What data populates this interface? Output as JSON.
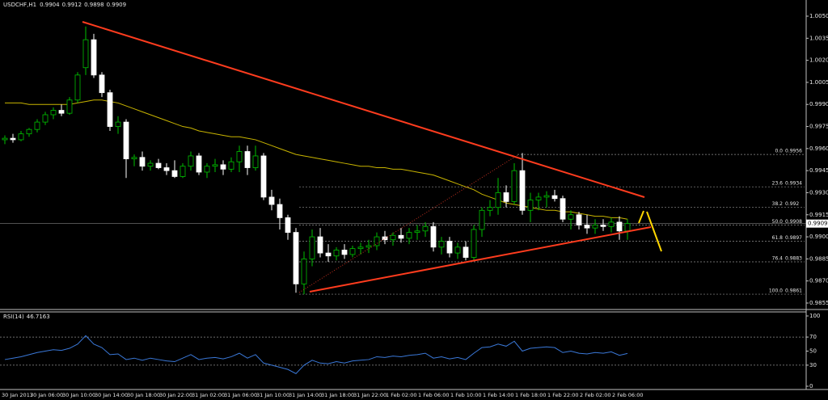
{
  "chart_data": [
    {
      "type": "candlestick",
      "title": "USDCHF,H1",
      "categories": [
        "30 Jan 2017",
        null,
        null,
        "30 Jan 06:00",
        null,
        null,
        null,
        "30 Jan 10:00",
        null,
        null,
        null,
        "30 Jan 14:00",
        null,
        null,
        null,
        "30 Jan 18:00",
        null,
        null,
        null,
        "30 Jan 22:00",
        null,
        null,
        null,
        "31 Jan 02:00",
        null,
        null,
        null,
        "31 Jan 06:00",
        null,
        null,
        null,
        "31 Jan 10:00",
        null,
        null,
        null,
        "31 Jan 14:00",
        null,
        null,
        null,
        "31 Jan 18:00",
        null,
        null,
        null,
        "31 Jan 22:00",
        null,
        null,
        null,
        "1 Feb 02:00",
        null,
        null,
        null,
        "1 Feb 06:00",
        null,
        null,
        null,
        "1 Feb 10:00",
        null,
        null,
        null,
        "1 Feb 14:00",
        null,
        null,
        null,
        "1 Feb 18:00",
        null,
        null,
        null,
        "1 Feb 22:00",
        null,
        null,
        null,
        "2 Feb 02:00",
        null,
        null,
        null,
        "2 Feb 06:00",
        null,
        null
      ],
      "open": [
        0.9966,
        0.9967,
        0.9966,
        0.997,
        0.9973,
        0.9978,
        0.9983,
        0.9986,
        0.9984,
        0.9993,
        1.0015,
        1.0034,
        1.001,
        0.9998,
        0.9975,
        0.9978,
        0.9953,
        0.9954,
        0.9948,
        0.995,
        0.9947,
        0.9945,
        0.9941,
        0.9948,
        0.9955,
        0.9944,
        0.9948,
        0.9949,
        0.9946,
        0.9951,
        0.9958,
        0.9947,
        0.9955,
        0.9927,
        0.9922,
        0.9913,
        0.9903,
        0.9868,
        0.9885,
        0.99,
        0.9889,
        0.9887,
        0.9891,
        0.9888,
        0.9892,
        0.9893,
        0.9894,
        0.99,
        0.9898,
        0.9901,
        0.9899,
        0.9903,
        0.9904,
        0.9907,
        0.9893,
        0.9897,
        0.9889,
        0.9893,
        0.9886,
        0.9905,
        0.9918,
        0.992,
        0.993,
        0.9924,
        0.9945,
        0.9918,
        0.9925,
        0.9927,
        0.9928,
        0.9926,
        0.9912,
        0.9915,
        0.9908,
        0.9906,
        0.9908,
        0.9907,
        0.991,
        0.9904
      ],
      "high": [
        0.9969,
        0.997,
        0.9972,
        0.9974,
        0.998,
        0.9985,
        0.9988,
        0.999,
        0.9995,
        1.0012,
        1.0043,
        1.0038,
        1.0012,
        1.0,
        0.9982,
        0.998,
        0.9956,
        0.9958,
        0.9952,
        0.9953,
        0.995,
        0.9952,
        0.995,
        0.9958,
        0.9957,
        0.995,
        0.9953,
        0.9952,
        0.9954,
        0.9962,
        0.9962,
        0.9962,
        0.9957,
        0.9932,
        0.9926,
        0.9915,
        0.9906,
        0.989,
        0.9905,
        0.9906,
        0.9895,
        0.9893,
        0.9895,
        0.9894,
        0.9896,
        0.9898,
        0.9903,
        0.9904,
        0.9903,
        0.9906,
        0.9906,
        0.9908,
        0.991,
        0.991,
        0.99,
        0.99,
        0.9896,
        0.9897,
        0.9908,
        0.992,
        0.9925,
        0.994,
        0.9935,
        0.995,
        0.9957,
        0.993,
        0.993,
        0.9931,
        0.9932,
        0.9928,
        0.9918,
        0.9917,
        0.9915,
        0.9912,
        0.9912,
        0.9913,
        0.9914,
        0.9912
      ],
      "low": [
        0.9963,
        0.9964,
        0.9965,
        0.9968,
        0.9971,
        0.9976,
        0.998,
        0.9982,
        0.9983,
        0.9991,
        1.001,
        1.0008,
        0.9995,
        0.9972,
        0.997,
        0.994,
        0.9948,
        0.9945,
        0.9945,
        0.9946,
        0.9942,
        0.994,
        0.994,
        0.9945,
        0.9942,
        0.994,
        0.9944,
        0.9942,
        0.9944,
        0.9944,
        0.9942,
        0.9945,
        0.9925,
        0.9918,
        0.9905,
        0.9898,
        0.9862,
        0.9861,
        0.988,
        0.9886,
        0.9883,
        0.9884,
        0.9885,
        0.9886,
        0.9888,
        0.9889,
        0.9891,
        0.9895,
        0.9894,
        0.9896,
        0.9895,
        0.9898,
        0.99,
        0.989,
        0.9888,
        0.9886,
        0.9885,
        0.9884,
        0.9884,
        0.99,
        0.9914,
        0.9915,
        0.992,
        0.9922,
        0.9915,
        0.991,
        0.9918,
        0.992,
        0.9924,
        0.991,
        0.9905,
        0.9905,
        0.9902,
        0.9902,
        0.9904,
        0.9903,
        0.9898,
        0.9898
      ],
      "close": [
        0.9967,
        0.9966,
        0.997,
        0.9973,
        0.9978,
        0.9983,
        0.9986,
        0.9984,
        0.9993,
        1.001,
        1.0034,
        1.001,
        0.9998,
        0.9975,
        0.9978,
        0.9953,
        0.9954,
        0.9948,
        0.995,
        0.9947,
        0.9945,
        0.9941,
        0.9948,
        0.9955,
        0.9944,
        0.9948,
        0.9949,
        0.9946,
        0.9951,
        0.9958,
        0.9947,
        0.9955,
        0.9927,
        0.9922,
        0.9913,
        0.9903,
        0.9868,
        0.9885,
        0.99,
        0.9889,
        0.9887,
        0.9891,
        0.9888,
        0.9892,
        0.9893,
        0.9894,
        0.99,
        0.9898,
        0.9901,
        0.9899,
        0.9903,
        0.9904,
        0.9907,
        0.9893,
        0.9897,
        0.9889,
        0.9893,
        0.9886,
        0.9905,
        0.9918,
        0.992,
        0.993,
        0.9924,
        0.9945,
        0.9918,
        0.9925,
        0.9927,
        0.9928,
        0.9926,
        0.9912,
        0.9915,
        0.9908,
        0.9906,
        0.9908,
        0.9907,
        0.991,
        0.9904,
        0.9909
      ],
      "up_color": "#00c000",
      "down_color": "#ffffff",
      "ma": {
        "color": "#c8b400",
        "values": [
          0.9991,
          0.9991,
          0.9991,
          0.999,
          0.999,
          0.999,
          0.999,
          0.999,
          0.999,
          0.9991,
          0.9992,
          0.9993,
          0.9993,
          0.9992,
          0.9991,
          0.9989,
          0.9987,
          0.9985,
          0.9983,
          0.9981,
          0.9979,
          0.9977,
          0.9975,
          0.9974,
          0.9972,
          0.9971,
          0.997,
          0.9969,
          0.9968,
          0.9968,
          0.9967,
          0.9966,
          0.9964,
          0.9962,
          0.996,
          0.9958,
          0.9956,
          0.9955,
          0.9954,
          0.9953,
          0.9952,
          0.9951,
          0.995,
          0.9949,
          0.9948,
          0.9948,
          0.9947,
          0.9947,
          0.9946,
          0.9946,
          0.9945,
          0.9944,
          0.9943,
          0.9942,
          0.994,
          0.9938,
          0.9936,
          0.9934,
          0.9932,
          0.9929,
          0.9927,
          0.9925,
          0.9923,
          0.9922,
          0.9921,
          0.992,
          0.9919,
          0.9918,
          0.9918,
          0.9917,
          0.9917,
          0.9916,
          0.9915,
          0.9914,
          0.9914,
          0.9913,
          0.9913,
          0.9912
        ]
      },
      "fib_levels": [
        {
          "ratio": "0.0",
          "price": 0.9956
        },
        {
          "ratio": "23.6",
          "price": 0.9934
        },
        {
          "ratio": "38.2",
          "price": 0.992
        },
        {
          "ratio": "50.0",
          "price": 0.9908
        },
        {
          "ratio": "61.8",
          "price": 0.9897
        },
        {
          "ratio": "76.4",
          "price": 0.9883
        },
        {
          "ratio": "100.0",
          "price": 0.9861
        }
      ],
      "ylim": [
        0.98506,
        1.0061
      ],
      "yticks": [
        {
          "value": 1.005,
          "label": "1.0050"
        },
        1.0035,
        {
          "value": 1.002,
          "label": "1.0020"
        },
        1.0005,
        {
          "value": 0.999,
          "label": "0.9990"
        },
        0.9975,
        {
          "value": 0.996,
          "label": "0.9960"
        },
        0.9945,
        {
          "value": 0.993,
          "label": "0.9930"
        },
        0.9915,
        {
          "value": 0.99,
          "label": "0.9900"
        },
        0.9885,
        {
          "value": 0.987,
          "label": "0.9870"
        },
        0.9855
      ]
    },
    {
      "type": "line",
      "title": "RSI(14)",
      "series": [
        {
          "color": "#3a78d8",
          "values": [
            38,
            40,
            42,
            45,
            48,
            50,
            52,
            51,
            54,
            60,
            72,
            60,
            55,
            45,
            46,
            38,
            40,
            37,
            40,
            38,
            36,
            35,
            40,
            45,
            38,
            40,
            41,
            39,
            42,
            47,
            40,
            45,
            33,
            30,
            27,
            24,
            18,
            30,
            37,
            33,
            32,
            35,
            33,
            36,
            37,
            38,
            42,
            41,
            43,
            42,
            44,
            45,
            47,
            40,
            42,
            39,
            41,
            38,
            47,
            55,
            56,
            60,
            57,
            64,
            50,
            54,
            55,
            56,
            55,
            48,
            50,
            47,
            46,
            48,
            47,
            49,
            44,
            46.7163
          ]
        }
      ],
      "ylim": [
        0,
        100
      ],
      "yticks": [
        0,
        30,
        50,
        70,
        100
      ],
      "levels": [
        30,
        70
      ]
    }
  ]
}
